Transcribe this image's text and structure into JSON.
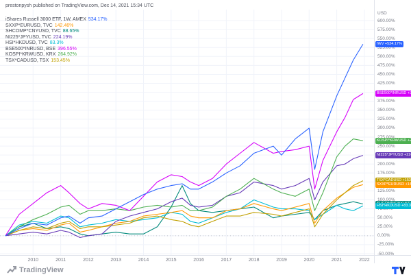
{
  "header": {
    "attribution": "prestonpysh published on TradingView.com, Dec 14, 2021 15:34 UTC",
    "currency": "USD"
  },
  "legend": {
    "rows": [
      {
        "name": "iShares Russell 3000 ETF, 1W, AMEX",
        "value": "534.17%",
        "color": "#2962FF"
      },
      {
        "name": "SXXP*EURUSD, TVC",
        "value": "142.46%",
        "color": "#FF9800"
      },
      {
        "name": "SHCOMP*CNYUSD, TVC",
        "value": "88.65%",
        "color": "#00897B"
      },
      {
        "name": "NI225*JPYUSD, TVC",
        "value": "224.19%",
        "color": "#673AB7"
      },
      {
        "name": "HSI*HKDUSD, TVC",
        "value": "83.3%",
        "color": "#00BCD4"
      },
      {
        "name": "BSE500*INRUSD, BSE",
        "value": "396.55%",
        "color": "#D500F9"
      },
      {
        "name": "KOSPI*KRWUSD, KRX",
        "value": "264.92%",
        "color": "#4CAF50"
      },
      {
        "name": "TSX*CADUSD, TSX",
        "value": "153.45%",
        "color": "#C0A000"
      }
    ]
  },
  "chart_data": {
    "type": "line",
    "title": "",
    "xlabel": "",
    "ylabel": "",
    "ylim": [
      -50,
      600
    ],
    "grid": true,
    "legend_position": "top-left",
    "yticks": [
      "600.00%",
      "575.00%",
      "550.00%",
      "525.00%",
      "500.00%",
      "475.00%",
      "450.00%",
      "425.00%",
      "400.00%",
      "375.00%",
      "350.00%",
      "325.00%",
      "300.00%",
      "275.00%",
      "250.00%",
      "225.00%",
      "200.00%",
      "175.00%",
      "150.00%",
      "125.00%",
      "100.00%",
      "75.00%",
      "50.00%",
      "25.00%",
      "0.00%",
      "-25.00%",
      "-50.00%"
    ],
    "xticks": [
      "2010",
      "2011",
      "2012",
      "2013",
      "2014",
      "2015",
      "2016",
      "2017",
      "2018",
      "2019",
      "2020",
      "2021",
      "2022"
    ],
    "x": [
      2009.0,
      2009.5,
      2010.0,
      2010.5,
      2011.0,
      2011.3,
      2011.7,
      2012.0,
      2012.5,
      2013.0,
      2013.5,
      2014.0,
      2014.5,
      2015.0,
      2015.4,
      2015.7,
      2016.0,
      2016.5,
      2017.0,
      2017.5,
      2018.0,
      2018.7,
      2019.0,
      2019.5,
      2020.0,
      2020.2,
      2020.5,
      2021.0,
      2021.3,
      2021.6,
      2021.95
    ],
    "series": [
      {
        "name": "SHCOMP*CNYUSD",
        "color": "#00897B",
        "values": [
          0,
          25,
          35,
          20,
          25,
          20,
          5,
          0,
          5,
          10,
          5,
          5,
          25,
          80,
          140,
          90,
          70,
          65,
          70,
          75,
          80,
          50,
          55,
          60,
          65,
          45,
          70,
          85,
          90,
          95,
          88.65
        ]
      },
      {
        "name": "HSI*HKDUSD",
        "color": "#00BCD4",
        "values": [
          0,
          30,
          40,
          35,
          55,
          50,
          25,
          30,
          35,
          45,
          40,
          45,
          50,
          65,
          60,
          40,
          35,
          50,
          65,
          75,
          100,
          80,
          75,
          75,
          70,
          45,
          60,
          85,
          75,
          70,
          83.3
        ]
      },
      {
        "name": "SXXP*EURUSD",
        "color": "#FF9800",
        "values": [
          0,
          15,
          20,
          15,
          30,
          35,
          10,
          15,
          25,
          35,
          40,
          55,
          60,
          65,
          70,
          55,
          50,
          50,
          70,
          75,
          90,
          75,
          70,
          80,
          90,
          35,
          70,
          105,
          120,
          135,
          142.46
        ]
      },
      {
        "name": "TSX*CADUSD",
        "color": "#C0A000",
        "values": [
          0,
          15,
          25,
          20,
          35,
          40,
          20,
          25,
          25,
          30,
          35,
          50,
          55,
          45,
          40,
          30,
          25,
          40,
          55,
          55,
          65,
          60,
          55,
          65,
          75,
          25,
          60,
          100,
          120,
          140,
          153.45
        ]
      },
      {
        "name": "NI225*JPYUSD",
        "color": "#673AB7",
        "values": [
          0,
          5,
          10,
          5,
          15,
          10,
          -5,
          0,
          5,
          40,
          55,
          65,
          75,
          95,
          105,
          85,
          80,
          85,
          110,
          120,
          150,
          140,
          130,
          140,
          160,
          100,
          150,
          195,
          200,
          215,
          224.19
        ]
      },
      {
        "name": "KOSPI*KRWUSD",
        "color": "#4CAF50",
        "values": [
          0,
          25,
          45,
          60,
          80,
          85,
          60,
          70,
          70,
          75,
          70,
          80,
          85,
          80,
          85,
          70,
          70,
          80,
          110,
          130,
          160,
          130,
          120,
          110,
          130,
          70,
          120,
          220,
          250,
          270,
          264.92
        ]
      },
      {
        "name": "BSE500*INRUSD",
        "color": "#D500F9",
        "values": [
          0,
          60,
          90,
          120,
          140,
          120,
          90,
          75,
          90,
          85,
          70,
          110,
          150,
          170,
          165,
          150,
          140,
          160,
          200,
          230,
          260,
          230,
          235,
          240,
          250,
          130,
          210,
          290,
          330,
          380,
          396.55
        ]
      },
      {
        "name": "IWV",
        "color": "#2962FF",
        "values": [
          0,
          20,
          35,
          30,
          50,
          55,
          35,
          50,
          55,
          75,
          95,
          115,
          130,
          140,
          145,
          130,
          130,
          150,
          175,
          195,
          230,
          250,
          225,
          270,
          300,
          185,
          290,
          390,
          440,
          490,
          534.17
        ]
      }
    ]
  },
  "price_scale": {
    "labels": [
      {
        "text": "IWV +534.17%",
        "value": 534.17,
        "color": "#2962FF"
      },
      {
        "text": "BSE500*INRUSD +396.55%",
        "value": 396.55,
        "color": "#D500F9"
      },
      {
        "text": "KOSPI*KRWUSD +264.92%",
        "value": 264.92,
        "color": "#4CAF50"
      },
      {
        "text": "NI225*JPYUSD +224.19%",
        "value": 224.19,
        "color": "#673AB7"
      },
      {
        "text": "TSX*CADUSD +153.45%",
        "value": 153.45,
        "color": "#C0A000"
      },
      {
        "text": "SXXP*EURUSD +142.46%",
        "value": 142.46,
        "color": "#FF9800"
      },
      {
        "text": "SHCOMP*CNYUSD +88.65%",
        "value": 88.65,
        "color": "#00897B"
      },
      {
        "text": "HSI*HKDUSD +83.3%",
        "value": 83.3,
        "color": "#00BCD4"
      }
    ]
  },
  "footer": {
    "brand": "TradingView"
  }
}
